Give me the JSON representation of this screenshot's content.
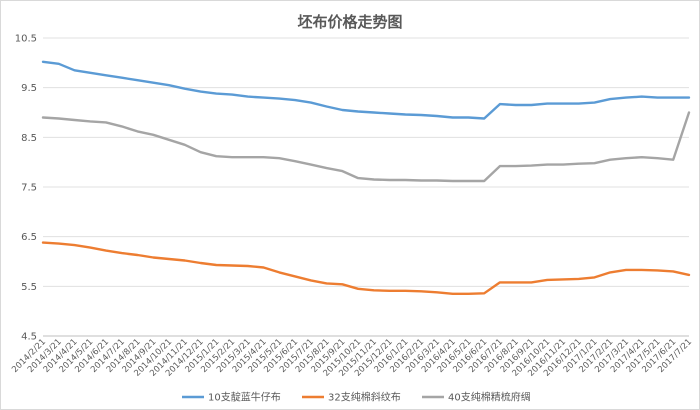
{
  "chart_data": {
    "type": "line",
    "title": "坯布价格走势图",
    "xlabel": "",
    "ylabel": "",
    "ylim": [
      4.5,
      10.5
    ],
    "yticks": [
      "4.5",
      "5.5",
      "6.5",
      "7.5",
      "8.5",
      "9.5",
      "10.5"
    ],
    "grid": true,
    "legend_position": "bottom",
    "categories": [
      "2014/2/21",
      "2014/3/21",
      "2014/4/21",
      "2014/5/21",
      "2014/6/21",
      "2014/7/21",
      "2014/8/21",
      "2014/9/21",
      "2014/10/21",
      "2014/11/21",
      "2014/12/21",
      "2015/1/21",
      "2015/2/21",
      "2015/3/21",
      "2015/4/21",
      "2015/5/21",
      "2015/6/21",
      "2015/7/21",
      "2015/8/21",
      "2015/9/21",
      "2015/10/21",
      "2015/11/21",
      "2015/12/21",
      "2016/1/21",
      "2016/2/21",
      "2016/3/21",
      "2016/4/21",
      "2016/5/21",
      "2016/6/21",
      "2016/7/21",
      "2016/8/21",
      "2016/9/21",
      "2016/10/21",
      "2016/11/21",
      "2016/12/21",
      "2017/1/21",
      "2017/2/21",
      "2017/3/21",
      "2017/4/21",
      "2017/5/21",
      "2017/6/21",
      "2017/7/21"
    ],
    "series": [
      {
        "name": "10支靛蓝牛仔布",
        "color": "#5b9bd5",
        "values": [
          10.02,
          9.98,
          9.85,
          9.8,
          9.75,
          9.7,
          9.65,
          9.6,
          9.55,
          9.48,
          9.42,
          9.38,
          9.36,
          9.32,
          9.3,
          9.28,
          9.25,
          9.2,
          9.12,
          9.05,
          9.02,
          9.0,
          8.98,
          8.96,
          8.95,
          8.93,
          8.9,
          8.9,
          8.88,
          9.17,
          9.15,
          9.15,
          9.18,
          9.18,
          9.18,
          9.2,
          9.27,
          9.3,
          9.32,
          9.3,
          9.3,
          9.3
        ]
      },
      {
        "name": "32支纯棉斜纹布",
        "color": "#ed7d31",
        "values": [
          6.38,
          6.36,
          6.33,
          6.28,
          6.22,
          6.17,
          6.13,
          6.08,
          6.05,
          6.02,
          5.97,
          5.93,
          5.92,
          5.91,
          5.88,
          5.78,
          5.7,
          5.62,
          5.56,
          5.54,
          5.45,
          5.42,
          5.41,
          5.41,
          5.4,
          5.38,
          5.35,
          5.35,
          5.36,
          5.58,
          5.58,
          5.58,
          5.63,
          5.64,
          5.65,
          5.68,
          5.78,
          5.83,
          5.83,
          5.82,
          5.8,
          5.73
        ]
      },
      {
        "name": "40支纯棉精梳府绸",
        "color": "#a5a5a5",
        "values": [
          8.9,
          8.88,
          8.85,
          8.82,
          8.8,
          8.72,
          8.62,
          8.55,
          8.45,
          8.35,
          8.2,
          8.12,
          8.1,
          8.1,
          8.1,
          8.08,
          8.02,
          7.95,
          7.88,
          7.82,
          7.68,
          7.65,
          7.64,
          7.64,
          7.63,
          7.63,
          7.62,
          7.62,
          7.62,
          7.92,
          7.92,
          7.93,
          7.95,
          7.95,
          7.97,
          7.98,
          8.05,
          8.08,
          8.1,
          8.08,
          8.05,
          9.0
        ]
      }
    ]
  }
}
